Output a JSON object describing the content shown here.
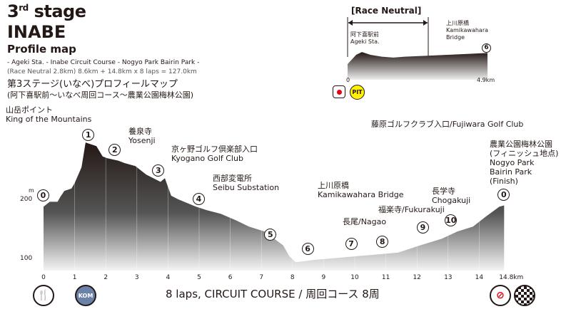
{
  "title": {
    "stage_num": "3",
    "stage_sup": "rd",
    "stage_word": "stage",
    "name": "INABE",
    "sub": "Profile map",
    "route": "- Ageki Sta. - Inabe Circuit Course - Nogyo Park Bairin Park -",
    "distance": "(Race Neutral 2.8km) 8.6km + 14.8km x 8 laps = 127.0km",
    "jp_title": "第3ステージ(いなべ)プロフィールマップ",
    "jp_route": "(阿下喜駅前〜いなべ周回コース〜農業公園梅林公園)"
  },
  "neutral": {
    "label": "[Race Neutral]",
    "start_label": "阿下喜駅前\nAgeki Sta.",
    "end_num": "6",
    "end_label": "上川原橋\nKamikawahara\nBridge",
    "ticks": [
      "0",
      "4.9km"
    ],
    "pit": "PIT",
    "profile_km": [
      0,
      0.3,
      0.5,
      0.8,
      1.2,
      1.6,
      2.0,
      2.8,
      3.5,
      4.2,
      4.9
    ],
    "profile_m": [
      150,
      160,
      163,
      160,
      158,
      157,
      158,
      159,
      160,
      161,
      162
    ]
  },
  "main": {
    "y_unit": "m",
    "y_ticks": [
      "200",
      "100"
    ],
    "x_ticks": [
      "0",
      "1",
      "2",
      "3",
      "4",
      "5",
      "6",
      "7",
      "8",
      "9",
      "10",
      "11",
      "12",
      "13",
      "14",
      "14.8km"
    ],
    "profile_km": [
      0,
      0.2,
      0.45,
      0.55,
      0.67,
      0.9,
      1.0,
      1.22,
      1.35,
      1.7,
      1.9,
      2.05,
      2.4,
      2.6,
      2.95,
      3.3,
      3.76,
      3.9,
      4.1,
      4.33,
      4.9,
      5.25,
      5.7,
      6.2,
      6.6,
      7.1,
      7.7,
      7.9,
      8.1,
      8.7,
      9.6,
      10.5,
      11.4,
      12.1,
      12.8,
      13.3,
      13.8,
      14.2,
      14.65,
      14.8
    ],
    "profile_m": [
      188,
      196,
      196,
      205,
      214,
      218,
      227,
      253,
      294,
      288,
      271,
      268,
      264,
      260,
      255,
      241,
      229,
      235,
      206,
      200,
      188,
      182,
      176,
      165,
      155,
      147,
      124,
      106,
      96,
      100,
      104,
      108,
      112,
      124,
      135,
      147,
      155,
      171,
      188,
      190
    ],
    "points": [
      {
        "num": "0",
        "label": "",
        "km": 0
      },
      {
        "num": "1",
        "label": "山岳ポイント\nKing of the Mountains",
        "km": 1.45
      },
      {
        "num": "2",
        "label": "養泉寺\nYosenji",
        "km": 2.3
      },
      {
        "num": "3",
        "label": "京ヶ野ゴルフ倶楽部入口\nKyogano Golf Club",
        "km": 3.7
      },
      {
        "num": "4",
        "label": "西部変電所\nSeibu Substation",
        "km": 5.0
      },
      {
        "num": "5",
        "label": "",
        "km": 7.3
      },
      {
        "num": "6",
        "label": "上川原橋\nKamikawahara Bridge",
        "km": 8.5
      },
      {
        "num": "7",
        "label": "長尾/Nagao",
        "km": 9.9
      },
      {
        "num": "8",
        "label": "福楽寺/Fukurakuji",
        "km": 10.9
      },
      {
        "num": "9",
        "label": "藤原ゴルフクラブ入口/Fujiwara Golf Club",
        "km": 12.2
      },
      {
        "num": "10",
        "label": "長学寺\nChogakuji",
        "km": 13.1
      },
      {
        "num": "0",
        "label": "農業公園梅林公園\n(フィニッシュ地点)\nNogyo Park\nBairin Park\n(Finish)",
        "km": 14.8
      }
    ],
    "footer": "8 laps, CIRCUIT COURSE / 周回コース 8周"
  },
  "icons": {
    "feed": "fork-knife-icon",
    "kom": "KOM",
    "sprint": "sprint-icon",
    "finish": "checkered-flag-icon"
  },
  "colors": {
    "profile": "#231815",
    "pit": "#fff100",
    "kom": "#6b82a8",
    "sprint": "#e60012"
  }
}
